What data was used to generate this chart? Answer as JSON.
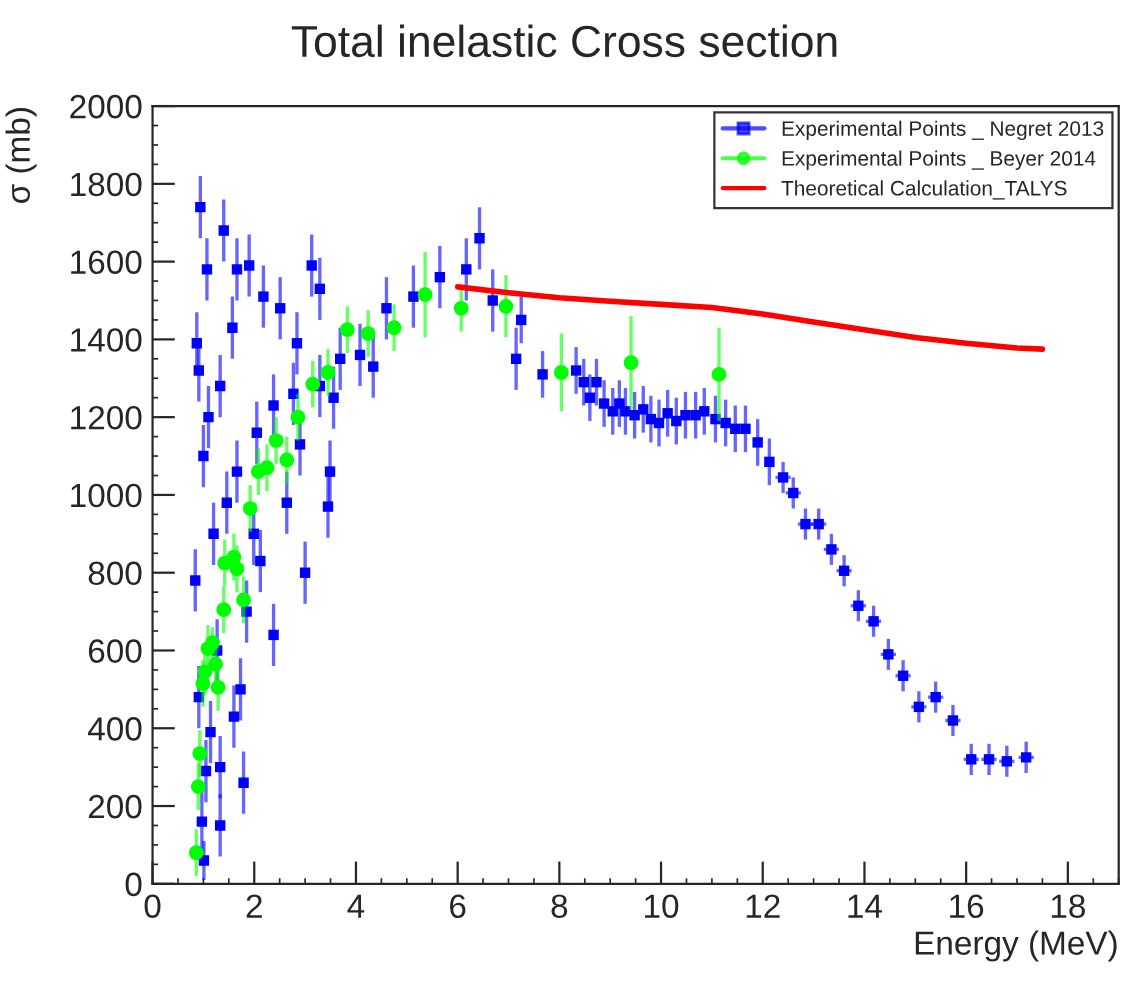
{
  "chart_data": {
    "type": "scatter",
    "title": "Total inelastic Cross section",
    "xlabel": "Energy (MeV)",
    "ylabel": "σ (mb)",
    "xlim": [
      0,
      19
    ],
    "ylim": [
      0,
      2000
    ],
    "xticks": [
      0,
      2,
      4,
      6,
      8,
      10,
      12,
      14,
      16,
      18
    ],
    "yticks": [
      0,
      200,
      400,
      600,
      800,
      1000,
      1200,
      1400,
      1600,
      1800,
      2000
    ],
    "grid": false,
    "legend": "top right",
    "series": [
      {
        "name": "Experimental Points _ Negret 2013",
        "marker": "square",
        "color": "#0000ff",
        "x": [
          0.94,
          1.07,
          1.4,
          1.66,
          1.9,
          2.18,
          0.87,
          0.91,
          1.0,
          0.84,
          1.79,
          1.33,
          1.01,
          1.57,
          2.51,
          2.84,
          3.13,
          3.29,
          3.45,
          3.0,
          2.38,
          1.99,
          1.33,
          1.14,
          1.6,
          1.73,
          1.2,
          1.46,
          1.66,
          2.05,
          2.38,
          2.77,
          3.29,
          3.69,
          4.08,
          4.6,
          5.13,
          5.65,
          6.17,
          6.43,
          6.69,
          7.15,
          4.34,
          3.56,
          0.97,
          1.05,
          0.91,
          1.27,
          1.85,
          2.12,
          2.64,
          1.1,
          1.33,
          2.9,
          3.49,
          7.25,
          7.67,
          8.33,
          8.48,
          8.73,
          8.6,
          8.88,
          9.05,
          9.18,
          9.3,
          9.48,
          9.65,
          9.8,
          9.96,
          10.13,
          10.3,
          10.48,
          10.68,
          10.85,
          11.07,
          11.27,
          11.46,
          11.66,
          11.9,
          12.13,
          12.4,
          12.6,
          12.84,
          13.1,
          13.35,
          13.6,
          13.88,
          14.18,
          14.47,
          14.76,
          15.07,
          15.4,
          15.74,
          16.1,
          16.45,
          16.8,
          17.18
        ],
        "values": [
          1740,
          1580,
          1680,
          1580,
          1590,
          1510,
          1390,
          1320,
          1100,
          780,
          260,
          150,
          60,
          1430,
          1480,
          1390,
          1590,
          1530,
          970,
          800,
          640,
          900,
          300,
          390,
          430,
          500,
          900,
          980,
          1060,
          1160,
          1230,
          1260,
          1280,
          1350,
          1360,
          1480,
          1510,
          1560,
          1580,
          1660,
          1500,
          1350,
          1330,
          1250,
          160,
          290,
          480,
          600,
          700,
          830,
          980,
          1200,
          1280,
          1130,
          1060,
          1450,
          1310,
          1320,
          1290,
          1290,
          1250,
          1235,
          1215,
          1235,
          1215,
          1205,
          1220,
          1195,
          1185,
          1210,
          1190,
          1205,
          1205,
          1215,
          1195,
          1185,
          1170,
          1170,
          1135,
          1085,
          1045,
          1005,
          925,
          925,
          860,
          805,
          715,
          675,
          590,
          535,
          455,
          480,
          420,
          320,
          320,
          315,
          325
        ],
        "errors": [
          80,
          80,
          80,
          80,
          80,
          80,
          80,
          80,
          80,
          80,
          80,
          80,
          50,
          80,
          80,
          80,
          80,
          80,
          80,
          80,
          80,
          80,
          80,
          80,
          80,
          80,
          80,
          80,
          80,
          80,
          80,
          80,
          80,
          80,
          80,
          80,
          80,
          80,
          80,
          80,
          80,
          80,
          80,
          80,
          80,
          80,
          80,
          80,
          80,
          80,
          80,
          80,
          80,
          80,
          80,
          60,
          60,
          60,
          60,
          60,
          60,
          60,
          60,
          60,
          60,
          60,
          60,
          60,
          60,
          60,
          60,
          60,
          60,
          60,
          60,
          60,
          60,
          60,
          60,
          60,
          40,
          40,
          40,
          40,
          40,
          40,
          40,
          40,
          40,
          40,
          40,
          40,
          40,
          40,
          40,
          40,
          40
        ],
        "xerrors": [
          null,
          null,
          null,
          null,
          null,
          null,
          null,
          null,
          null,
          null,
          null,
          null,
          null,
          null,
          null,
          null,
          null,
          null,
          null,
          null,
          null,
          null,
          null,
          null,
          null,
          null,
          null,
          null,
          null,
          null,
          null,
          null,
          null,
          null,
          null,
          null,
          null,
          null,
          null,
          null,
          null,
          null,
          null,
          null,
          null,
          null,
          null,
          null,
          null,
          null,
          null,
          null,
          null,
          null,
          null,
          null,
          null,
          null,
          null,
          null,
          null,
          null,
          null,
          null,
          null,
          null,
          null,
          null,
          null,
          null,
          null,
          null,
          null,
          null,
          null,
          null,
          null,
          null,
          null,
          null,
          0.15,
          0.15,
          0.15,
          0.15,
          0.15,
          0.15,
          0.15,
          0.15,
          0.15,
          0.15,
          0.15,
          0.15,
          0.15,
          0.15,
          0.15,
          0.15,
          0.15
        ]
      },
      {
        "name": "Experimental Points _ Beyer 2014",
        "marker": "circle",
        "color": "#00ff00",
        "x": [
          0.86,
          0.9,
          0.93,
          0.99,
          1.03,
          1.09,
          1.18,
          1.24,
          1.29,
          1.4,
          1.42,
          1.6,
          1.66,
          1.79,
          1.92,
          2.08,
          2.25,
          2.43,
          2.64,
          2.86,
          3.15,
          3.45,
          3.83,
          4.24,
          4.75,
          5.36,
          6.07,
          6.95,
          8.04,
          9.41,
          11.14
        ],
        "values": [
          80,
          250,
          335,
          515,
          545,
          605,
          620,
          565,
          505,
          705,
          825,
          840,
          810,
          730,
          965,
          1060,
          1070,
          1140,
          1090,
          1200,
          1285,
          1315,
          1425,
          1415,
          1430,
          1515,
          1480,
          1485,
          1315,
          1340,
          1310
        ],
        "errors": [
          60,
          60,
          60,
          60,
          60,
          60,
          40,
          60,
          60,
          60,
          60,
          60,
          60,
          60,
          60,
          60,
          60,
          60,
          60,
          60,
          60,
          60,
          60,
          60,
          60,
          110,
          60,
          80,
          100,
          120,
          120
        ]
      },
      {
        "name": "Theoretical Calculation_TALYS",
        "type": "line",
        "marker": "none",
        "line_style": "solid",
        "color": "#ff0000",
        "x": [
          6.0,
          7,
          8,
          9,
          10,
          11,
          12,
          13,
          14,
          15,
          16,
          17,
          17.5
        ],
        "values": [
          1535,
          1520,
          1507,
          1498,
          1490,
          1482,
          1465,
          1445,
          1425,
          1405,
          1390,
          1378,
          1375
        ]
      }
    ]
  }
}
